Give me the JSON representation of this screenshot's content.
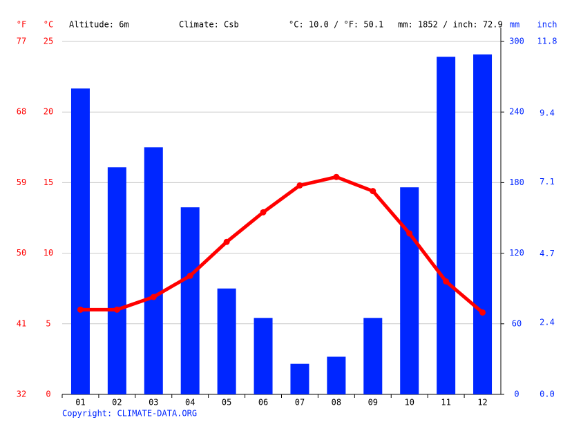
{
  "chart_data": {
    "type": "climate",
    "categories": [
      "01",
      "02",
      "03",
      "04",
      "05",
      "06",
      "07",
      "08",
      "09",
      "10",
      "11",
      "12"
    ],
    "series": [
      {
        "color": "#0026ff",
        "axis": "y2",
        "kind": "bar",
        "values": [
          260,
          193,
          210,
          159,
          90,
          65,
          26,
          32,
          65,
          176,
          287,
          289
        ]
      },
      {
        "color": "#ff0000",
        "kind": "line",
        "values": [
          6.0,
          6.0,
          6.9,
          8.4,
          10.8,
          12.9,
          14.8,
          15.4,
          14.4,
          11.4,
          8.0,
          5.8
        ]
      }
    ],
    "ylim": [
      0,
      25
    ],
    "yticks": [
      0,
      5,
      10,
      15,
      20,
      25
    ],
    "y2lim": [
      0,
      300
    ],
    "y2ticks": [
      0,
      60,
      120,
      180,
      240,
      300
    ],
    "yflim": [
      32,
      77
    ],
    "yfticks": [
      32,
      41,
      50,
      59,
      68,
      77
    ],
    "yinchlim": [
      0,
      11.8
    ],
    "yinchticks": [
      {
        "value": 0,
        "label": "0.0"
      },
      2.4,
      4.7,
      7.1,
      9.4,
      11.8
    ],
    "unit_f": "°F",
    "unit_c": "°C",
    "unit_mm": "mm",
    "unit_inch": "inch",
    "altitude": "Altitude: 6m",
    "climate": "Climate: Csb",
    "temp_summary": "°C: 10.0 / °F: 50.1",
    "precip_summary": "mm: 1852 / inch: 72.9",
    "grid": true,
    "copyright": "Copyright: CLIMATE-DATA.ORG"
  }
}
